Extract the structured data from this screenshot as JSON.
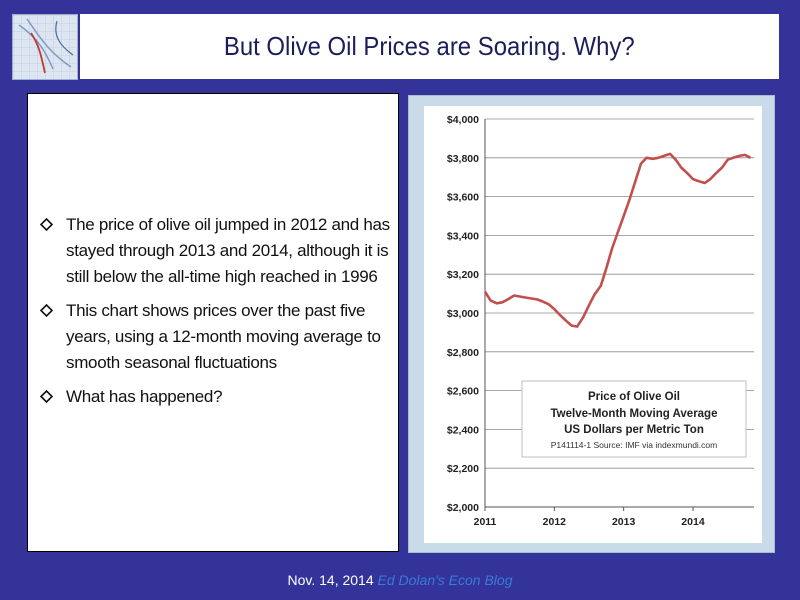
{
  "slide": {
    "title": "But Olive Oil Prices are Soaring. Why?",
    "bullets": [
      "The price of olive oil jumped in 2012 and has stayed through 2013 and 2014, although it is still below the all-time high reached in 1996",
      "This chart shows prices over the past five years, using a 12-month moving average to smooth seasonal fluctuations",
      "What has happened?"
    ],
    "footer_date": "Nov. 14, 2014",
    "footer_blog": "Ed Dolan's Econ Blog"
  },
  "colors": {
    "background": "#33339a",
    "line": "#c0504d",
    "footer_link": "#3a7bd5"
  },
  "chart_data": {
    "type": "line",
    "title": "Price of Olive Oil",
    "subtitle_lines": [
      "Twelve-Month Moving Average",
      "US Dollars per Metric Ton"
    ],
    "source": "P141114-1 Source: IMF via indexmundi.com",
    "xlabel": "",
    "ylabel": "",
    "ylim": [
      2000,
      4000
    ],
    "xlim": [
      2011,
      2014.88
    ],
    "y_ticks": [
      "$2,000",
      "$2,200",
      "$2,400",
      "$2,600",
      "$2,800",
      "$3,000",
      "$3,200",
      "$3,400",
      "$3,600",
      "$3,800",
      "$4,000"
    ],
    "y_tick_values": [
      2000,
      2200,
      2400,
      2600,
      2800,
      3000,
      3200,
      3400,
      3600,
      3800,
      4000
    ],
    "x_ticks": [
      "2011",
      "2012",
      "2013",
      "2014"
    ],
    "x_tick_values": [
      2011,
      2012,
      2013,
      2014
    ],
    "grid": true,
    "series": [
      {
        "x": [
          2011.0,
          2011.08,
          2011.17,
          2011.25,
          2011.33,
          2011.42,
          2011.5,
          2011.58,
          2011.67,
          2011.75,
          2011.83,
          2011.92,
          2012.0,
          2012.08,
          2012.17,
          2012.25,
          2012.33,
          2012.42,
          2012.5,
          2012.58,
          2012.67,
          2012.75,
          2012.83,
          2012.92,
          2013.0,
          2013.08,
          2013.17,
          2013.25,
          2013.33,
          2013.42,
          2013.5,
          2013.58,
          2013.67,
          2013.75,
          2013.83,
          2013.92,
          2014.0,
          2014.08,
          2014.17,
          2014.25,
          2014.33,
          2014.42,
          2014.5,
          2014.58,
          2014.67,
          2014.75,
          2014.83
        ],
        "values": [
          3110,
          3065,
          3050,
          3055,
          3070,
          3090,
          3085,
          3080,
          3075,
          3070,
          3060,
          3045,
          3020,
          2990,
          2960,
          2935,
          2930,
          2980,
          3040,
          3095,
          3140,
          3230,
          3330,
          3420,
          3500,
          3580,
          3680,
          3770,
          3800,
          3795,
          3800,
          3810,
          3820,
          3790,
          3750,
          3720,
          3690,
          3680,
          3670,
          3690,
          3720,
          3750,
          3790,
          3800,
          3810,
          3815,
          3800
        ]
      }
    ]
  }
}
